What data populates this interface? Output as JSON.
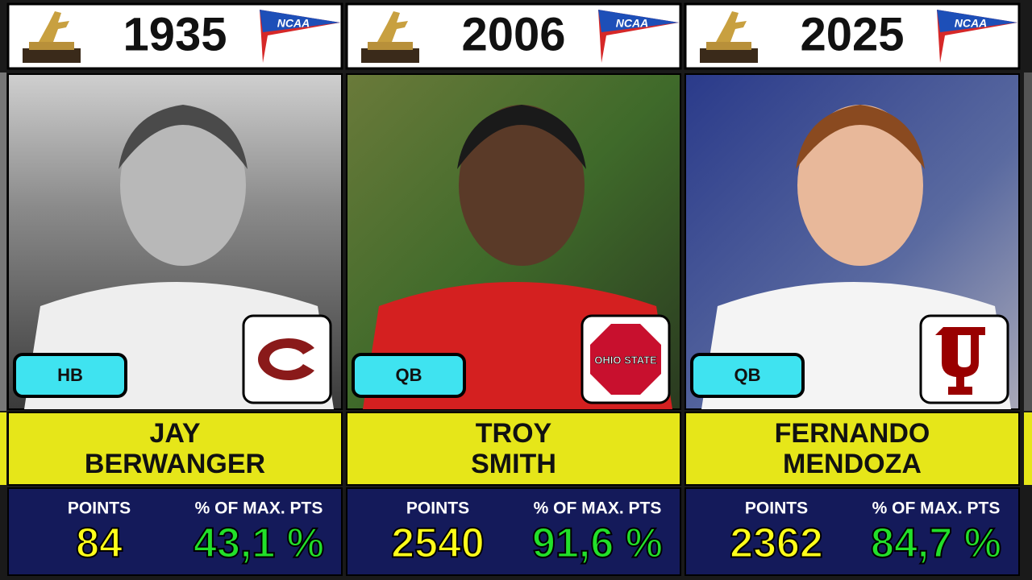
{
  "cards": [
    {
      "year": "1935",
      "league": "NCAA",
      "position": "HB",
      "name": [
        "JAY",
        "BERWANGER"
      ],
      "points_label": "POINTS",
      "points": "84",
      "percent_label": "% OF MAX. PTS",
      "percent": "43,1 %"
    },
    {
      "year": "2006",
      "league": "NCAA",
      "position": "QB",
      "name": [
        "TROY",
        "SMITH"
      ],
      "points_label": "POINTS",
      "points": "2540",
      "percent_label": "% OF MAX. PTS",
      "percent": "91,6 %",
      "logo_text": "OHIO STATE"
    },
    {
      "year": "2025",
      "league": "NCAA",
      "position": "QB",
      "name": [
        "FERNANDO",
        "MENDOZA"
      ],
      "points_label": "POINTS",
      "points": "2362",
      "percent_label": "% OF MAX. PTS",
      "percent": "84,7 %"
    }
  ]
}
